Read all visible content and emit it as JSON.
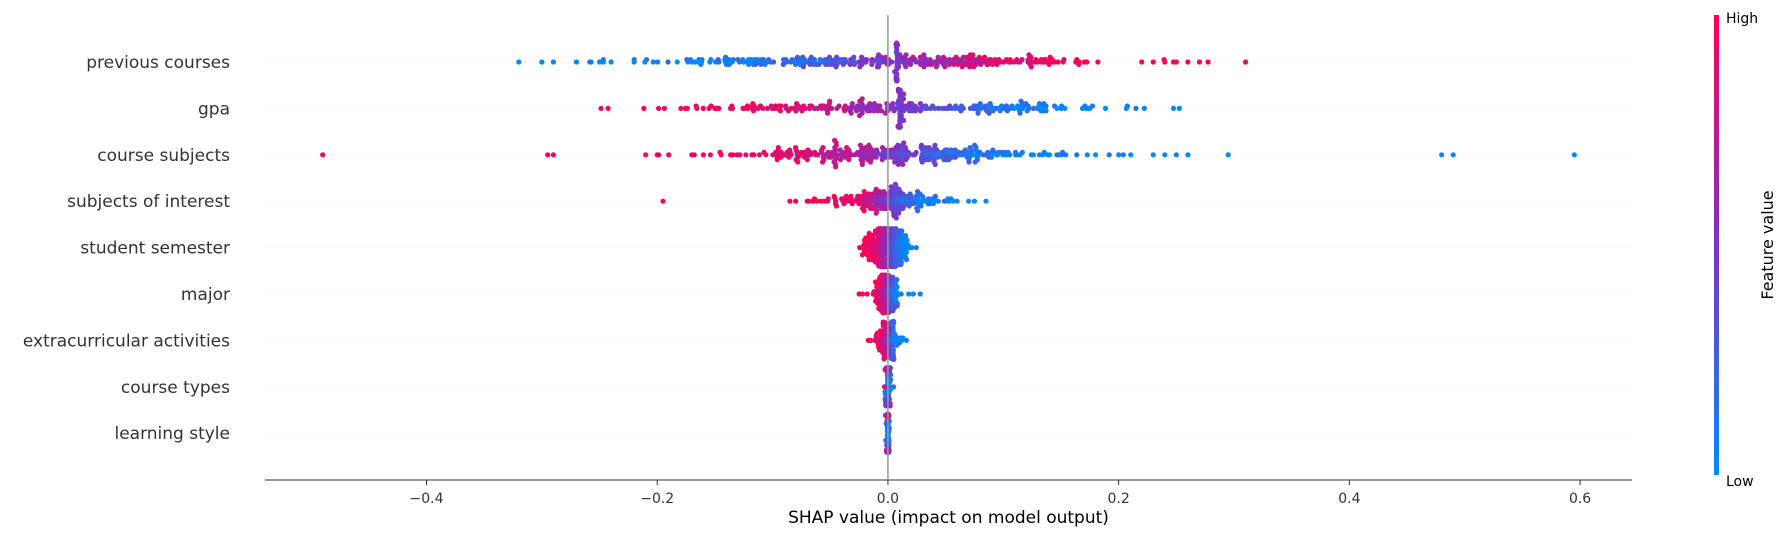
{
  "chart_data": {
    "type": "scatter",
    "subtype": "shap-beeswarm",
    "title": "",
    "xlabel": "SHAP value (impact on model output)",
    "ylabel": "",
    "xlim": [
      -0.54,
      0.645
    ],
    "xticks": [
      -0.4,
      -0.2,
      0.0,
      0.2,
      0.4,
      0.6
    ],
    "xtick_labels": [
      "−0.4",
      "−0.2",
      "0.0",
      "0.2",
      "0.4",
      "0.6"
    ],
    "grid": "dotted row guides",
    "colorbar": {
      "title": "Feature value",
      "high_label": "High",
      "low_label": "Low",
      "low_color": "#008bfb",
      "mid_color": "#7e32c7",
      "high_color": "#ff0052"
    },
    "zero_line_color": "#999999",
    "features": [
      {
        "name": "previous courses",
        "count": 320,
        "spread": 0.1,
        "center": 0.0,
        "corr": 1,
        "noise": 0.3,
        "tails": [
          -0.32,
          -0.3,
          -0.29,
          -0.27,
          -0.25,
          -0.24,
          -0.22,
          0.22,
          0.23,
          0.24,
          0.25,
          0.26,
          0.27,
          0.31
        ],
        "spike": 0.008
      },
      {
        "name": "gpa",
        "count": 260,
        "spread": 0.09,
        "center": 0.01,
        "corr": -1,
        "noise": 0.25,
        "tails": [
          -0.15,
          -0.148,
          0.175,
          0.172
        ],
        "spike": 0.011
      },
      {
        "name": "course subjects",
        "count": 320,
        "spread": 0.07,
        "center": 0.0,
        "corr": -1,
        "noise": 0.3,
        "tails": [
          -0.49,
          -0.295,
          -0.29,
          -0.21,
          -0.2,
          -0.19,
          -0.17,
          -0.16,
          0.18,
          0.2,
          0.23,
          0.24,
          0.25,
          0.26,
          0.295,
          0.48,
          0.49,
          0.595
        ]
      },
      {
        "name": "subjects of interest",
        "count": 200,
        "spread": 0.025,
        "center": 0.0,
        "corr": -1,
        "noise": 0.3,
        "tails": [
          -0.195,
          -0.085,
          -0.08,
          -0.07,
          -0.065,
          0.06,
          0.07,
          0.075,
          0.085
        ]
      },
      {
        "name": "student semester",
        "count": 260,
        "spread": 0.01,
        "center": 0.0,
        "corr": -1,
        "noise": 0.15,
        "tails": []
      },
      {
        "name": "major",
        "count": 120,
        "spread": 0.006,
        "center": 0.0,
        "corr": -1,
        "noise": 0.3,
        "tails": [
          -0.025,
          -0.022,
          -0.018,
          0.018,
          0.022,
          0.028
        ]
      },
      {
        "name": "extracurricular activities",
        "count": 100,
        "spread": 0.005,
        "center": 0.0,
        "corr": -1,
        "noise": 0.35,
        "tails": [
          -0.017,
          -0.015,
          0.013,
          0.016
        ]
      },
      {
        "name": "course types",
        "count": 70,
        "spread": 0.0012,
        "center": 0.0,
        "corr": 0,
        "noise": 0.5,
        "tails": [
          -0.003,
          0.005
        ]
      },
      {
        "name": "learning style",
        "count": 70,
        "spread": 0.0008,
        "center": 0.0,
        "corr": 0,
        "noise": 0.5,
        "tails": []
      }
    ]
  }
}
